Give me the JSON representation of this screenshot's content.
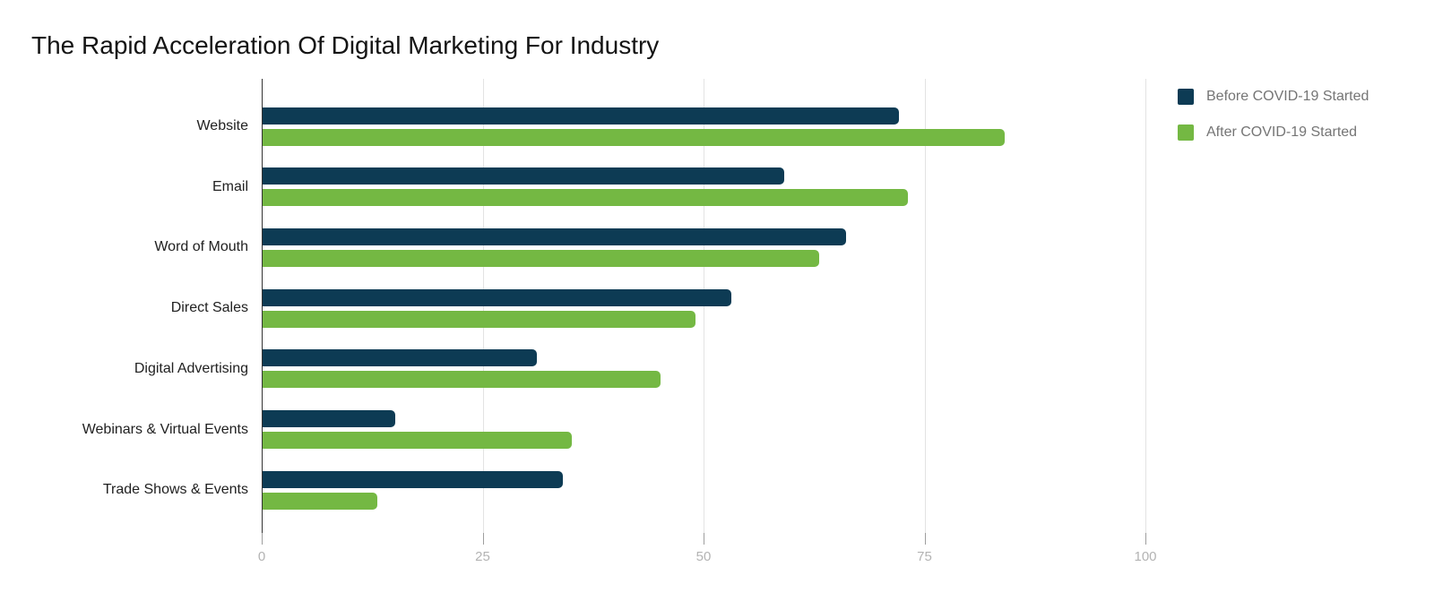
{
  "chart_data": {
    "type": "bar",
    "orientation": "horizontal",
    "title": "The Rapid Acceleration Of Digital Marketing For Industry",
    "categories": [
      "Website",
      "Email",
      "Word of Mouth",
      "Direct Sales",
      "Digital Advertising",
      "Webinars & Virtual Events",
      "Trade Shows & Events"
    ],
    "series": [
      {
        "name": "Before COVID-19 Started",
        "color": "#0d3b54",
        "values": [
          72,
          59,
          66,
          53,
          31,
          15,
          34
        ]
      },
      {
        "name": "After COVID-19 Started",
        "color": "#74b843",
        "values": [
          84,
          73,
          63,
          49,
          45,
          35,
          13
        ]
      }
    ],
    "x_axis": {
      "min": 0,
      "max": 100,
      "ticks": [
        0,
        25,
        50,
        75,
        100
      ]
    },
    "legend_position": "top-right",
    "grid": true,
    "colors": {
      "gridline": "#e3e3e3",
      "axis_line": "#333333",
      "tick_mark": "#9e9e9e",
      "tick_label": "#b3b3b3",
      "category_label": "#212121",
      "legend_text": "#757575",
      "title_text": "#141414",
      "background": "#ffffff"
    }
  }
}
